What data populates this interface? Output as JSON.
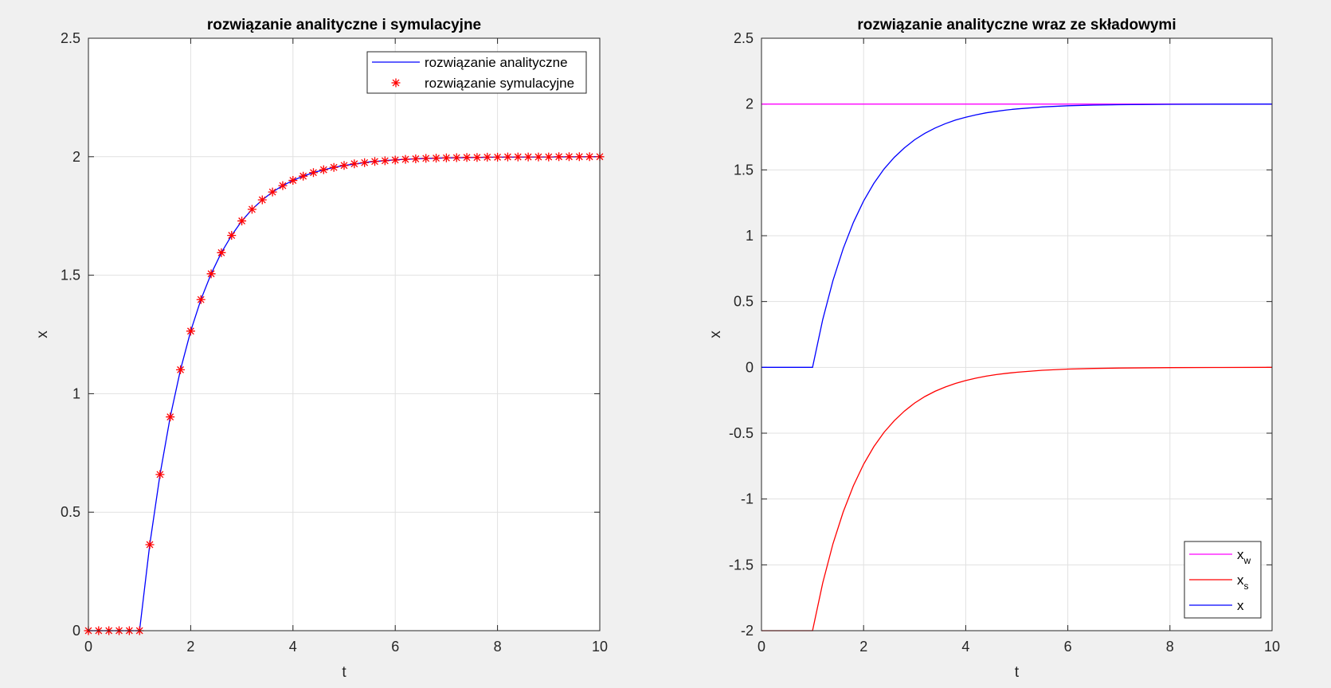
{
  "chart_data": [
    {
      "type": "line",
      "title": "rozwiązanie analityczne i symulacyjne",
      "xlabel": "t",
      "ylabel": "x",
      "xlim": [
        0,
        10
      ],
      "ylim": [
        0,
        2.5
      ],
      "xticks": [
        "0",
        "2",
        "4",
        "6",
        "8",
        "10"
      ],
      "yticks": [
        "0",
        "0.5",
        "1",
        "1.5",
        "2",
        "2.5"
      ],
      "grid": true,
      "legend_position": "top-right",
      "series": [
        {
          "name": "rozwiązanie analityczne",
          "style": "line",
          "color": "#0000ff",
          "x": [
            0,
            1,
            1.2,
            1.4,
            1.6,
            1.8,
            2,
            2.2,
            2.4,
            2.6,
            2.8,
            3,
            3.2,
            3.4,
            3.6,
            3.8,
            4,
            4.2,
            4.4,
            4.6,
            4.8,
            5,
            5.5,
            6,
            6.5,
            7,
            8,
            9,
            10
          ],
          "y": [
            0,
            0,
            0.363,
            0.659,
            0.902,
            1.101,
            1.264,
            1.397,
            1.506,
            1.595,
            1.668,
            1.729,
            1.778,
            1.818,
            1.851,
            1.878,
            1.9,
            1.918,
            1.933,
            1.945,
            1.955,
            1.963,
            1.978,
            1.987,
            1.992,
            1.995,
            1.998,
            1.999,
            2.0
          ]
        },
        {
          "name": "rozwiązanie symulacyjne",
          "style": "marker",
          "marker": "*",
          "color": "#ff0000",
          "x": [
            0,
            0.2,
            0.4,
            0.6,
            0.8,
            1.0,
            1.2,
            1.4,
            1.6,
            1.8,
            2.0,
            2.2,
            2.4,
            2.6,
            2.8,
            3.0,
            3.2,
            3.4,
            3.6,
            3.8,
            4.0,
            4.2,
            4.4,
            4.6,
            4.8,
            5.0,
            5.2,
            5.4,
            5.6,
            5.8,
            6.0,
            6.2,
            6.4,
            6.6,
            6.8,
            7.0,
            7.2,
            7.4,
            7.6,
            7.8,
            8.0,
            8.2,
            8.4,
            8.6,
            8.8,
            9.0,
            9.2,
            9.4,
            9.6,
            9.8,
            10.0
          ],
          "y": [
            0,
            0,
            0,
            0,
            0,
            0,
            0.363,
            0.659,
            0.902,
            1.101,
            1.264,
            1.397,
            1.506,
            1.595,
            1.668,
            1.729,
            1.778,
            1.818,
            1.851,
            1.878,
            1.9,
            1.918,
            1.933,
            1.945,
            1.955,
            1.963,
            1.97,
            1.975,
            1.98,
            1.983,
            1.986,
            1.989,
            1.991,
            1.993,
            1.994,
            1.995,
            1.996,
            1.997,
            1.997,
            1.998,
            1.998,
            1.999,
            1.999,
            1.999,
            1.999,
            1.999,
            2.0,
            2.0,
            2.0,
            2.0,
            2.0
          ]
        }
      ]
    },
    {
      "type": "line",
      "title": "rozwiązanie analityczne wraz ze składowymi",
      "xlabel": "t",
      "ylabel": "x",
      "xlim": [
        0,
        10
      ],
      "ylim": [
        -2,
        2.5
      ],
      "xticks": [
        "0",
        "2",
        "4",
        "6",
        "8",
        "10"
      ],
      "yticks": [
        "-2",
        "-1.5",
        "-1",
        "-0.5",
        "0",
        "0.5",
        "1",
        "1.5",
        "2",
        "2.5"
      ],
      "grid": true,
      "legend_position": "bottom-right",
      "series": [
        {
          "name": "x",
          "sub": "w",
          "style": "line",
          "color": "#ff00ff",
          "x": [
            0,
            10
          ],
          "y": [
            2,
            2
          ]
        },
        {
          "name": "x",
          "sub": "s",
          "style": "line",
          "color": "#ff0000",
          "x": [
            0,
            1,
            1.2,
            1.4,
            1.6,
            1.8,
            2,
            2.2,
            2.4,
            2.6,
            2.8,
            3,
            3.2,
            3.4,
            3.6,
            3.8,
            4,
            4.2,
            4.4,
            4.6,
            4.8,
            5,
            5.5,
            6,
            6.5,
            7,
            8,
            9,
            10
          ],
          "y": [
            -2,
            -2,
            -1.637,
            -1.341,
            -1.098,
            -0.899,
            -0.736,
            -0.603,
            -0.494,
            -0.405,
            -0.332,
            -0.271,
            -0.222,
            -0.182,
            -0.149,
            -0.122,
            -0.1,
            -0.082,
            -0.067,
            -0.055,
            -0.045,
            -0.037,
            -0.022,
            -0.013,
            -0.008,
            -0.005,
            -0.002,
            -0.001,
            0
          ]
        },
        {
          "name": "x",
          "sub": "",
          "style": "line",
          "color": "#0000ff",
          "x": [
            0,
            1,
            1.2,
            1.4,
            1.6,
            1.8,
            2,
            2.2,
            2.4,
            2.6,
            2.8,
            3,
            3.2,
            3.4,
            3.6,
            3.8,
            4,
            4.2,
            4.4,
            4.6,
            4.8,
            5,
            5.5,
            6,
            6.5,
            7,
            8,
            9,
            10
          ],
          "y": [
            0,
            0,
            0.363,
            0.659,
            0.902,
            1.101,
            1.264,
            1.397,
            1.506,
            1.595,
            1.668,
            1.729,
            1.778,
            1.818,
            1.851,
            1.878,
            1.9,
            1.918,
            1.933,
            1.945,
            1.955,
            1.963,
            1.978,
            1.987,
            1.992,
            1.995,
            1.998,
            1.999,
            2.0
          ]
        }
      ]
    }
  ]
}
